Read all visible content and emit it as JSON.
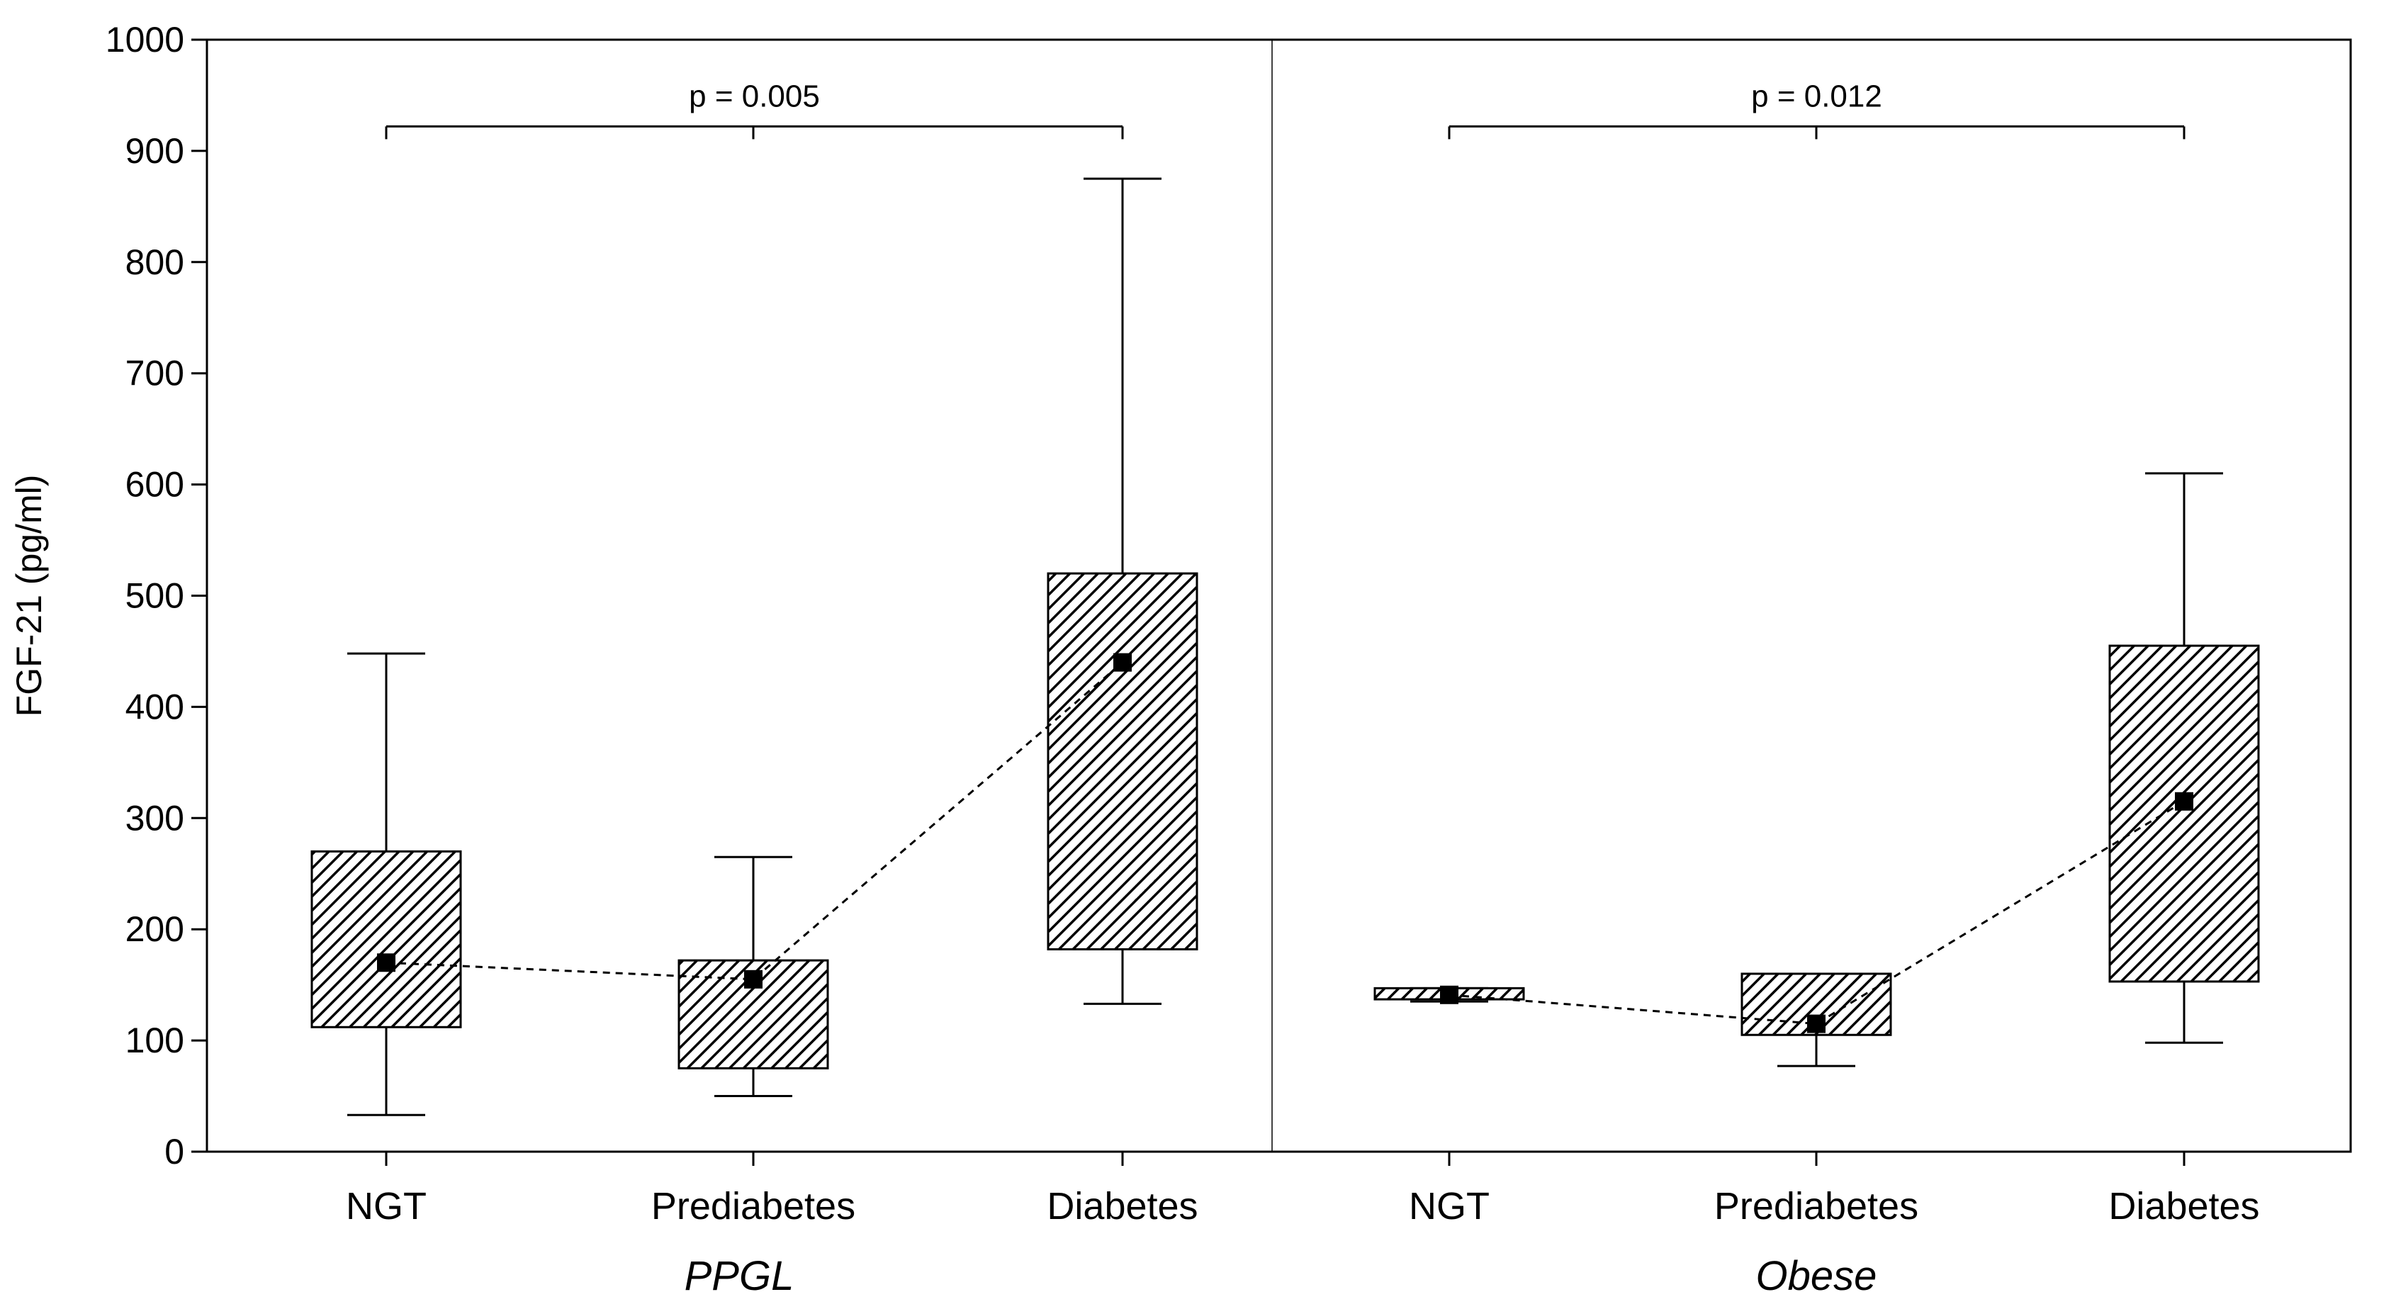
{
  "chart_data": {
    "type": "boxplot",
    "ylabel": "FGF-21 (pg/ml)",
    "xlabel": "",
    "ylim": [
      0,
      1000
    ],
    "yticks": [
      "0",
      "100",
      "200",
      "300",
      "400",
      "500",
      "600",
      "700",
      "800",
      "900",
      "1000"
    ],
    "grid": false,
    "groups": [
      {
        "label": "PPGL",
        "categories": [
          {
            "label": "NGT",
            "whisker_low": 33,
            "q1": 112,
            "median": 170,
            "q3": 270,
            "whisker_high": 448
          },
          {
            "label": "Prediabetes",
            "whisker_low": 50,
            "q1": 75,
            "median": 155,
            "q3": 172,
            "whisker_high": 265
          },
          {
            "label": "Diabetes",
            "whisker_low": 133,
            "q1": 182,
            "median": 440,
            "q3": 520,
            "whisker_high": 875
          }
        ],
        "comparison": {
          "label": "p = 0.005",
          "from": "NGT",
          "to": "Diabetes",
          "y": 922
        }
      },
      {
        "label": "Obese",
        "categories": [
          {
            "label": "NGT",
            "whisker_low": 135,
            "q1": 137,
            "median": 141,
            "q3": 147,
            "whisker_high": 147
          },
          {
            "label": "Prediabetes",
            "whisker_low": 77,
            "q1": 105,
            "median": 115,
            "q3": 160,
            "whisker_high": 160
          },
          {
            "label": "Diabetes",
            "whisker_low": 98,
            "q1": 153,
            "median": 315,
            "q3": 455,
            "whisker_high": 610
          }
        ],
        "comparison": {
          "label": "p = 0.012",
          "from": "NGT",
          "to": "Diabetes",
          "y": 922
        }
      }
    ],
    "colors": {
      "box_hatch": "#000000",
      "box_fill": "#ffffff",
      "line": "#000000"
    }
  }
}
